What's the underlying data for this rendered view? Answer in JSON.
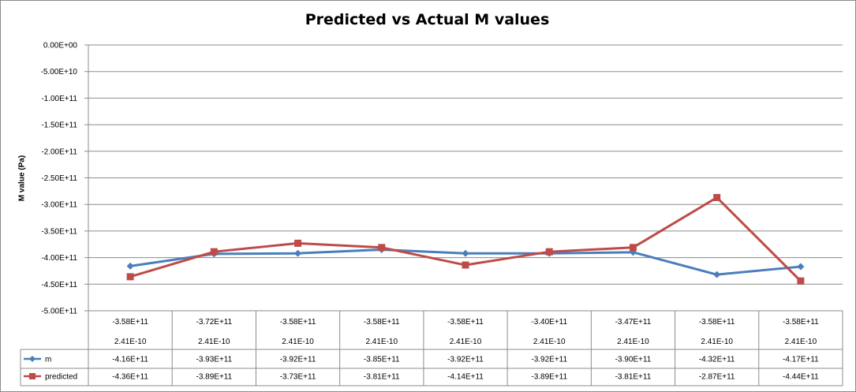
{
  "chart_data": {
    "type": "line",
    "title": "Predicted vs Actual M values",
    "ylabel": "M value  (Pa)",
    "ylim": [
      -500000000000,
      0
    ],
    "yticks": [
      0,
      -50000000000,
      -100000000000,
      -150000000000,
      -200000000000,
      -250000000000,
      -300000000000,
      -350000000000,
      -400000000000,
      -450000000000,
      -500000000000
    ],
    "ytick_labels": [
      "0.00E+00",
      "-5.00E+10",
      "-1.00E+11",
      "-1.50E+11",
      "-2.00E+11",
      "-2.50E+11",
      "-3.00E+11",
      "-3.50E+11",
      "-4.00E+11",
      "-4.50E+11",
      "-5.00E+11"
    ],
    "category_rows": [
      [
        "-3.58E+11",
        "-3.72E+11",
        "-3.58E+11",
        "-3.58E+11",
        "-3.58E+11",
        "-3.40E+11",
        "-3.47E+11",
        "-3.58E+11",
        "-3.58E+11"
      ],
      [
        "2.41E-10",
        "2.41E-10",
        "2.41E-10",
        "2.41E-10",
        "2.41E-10",
        "2.41E-10",
        "2.41E-10",
        "2.41E-10",
        "2.41E-10"
      ]
    ],
    "series": [
      {
        "name": "m",
        "color": "#4a7ebb",
        "marker": "diamond",
        "values": [
          -416000000000,
          -393000000000,
          -392000000000,
          -385000000000,
          -392000000000,
          -392000000000,
          -390000000000,
          -432000000000,
          -417000000000
        ],
        "labels": [
          "-4.16E+11",
          "-3.93E+11",
          "-3.92E+11",
          "-3.85E+11",
          "-3.92E+11",
          "-3.92E+11",
          "-3.90E+11",
          "-4.32E+11",
          "-4.17E+11"
        ]
      },
      {
        "name": "predicted",
        "color": "#be4b48",
        "marker": "square",
        "values": [
          -436000000000,
          -389000000000,
          -373000000000,
          -381000000000,
          -414000000000,
          -389000000000,
          -381000000000,
          -287000000000,
          -444000000000
        ],
        "labels": [
          "-4.36E+11",
          "-3.89E+11",
          "-3.73E+11",
          "-3.81E+11",
          "-4.14E+11",
          "-3.89E+11",
          "-3.81E+11",
          "-2.87E+11",
          "-4.44E+11"
        ]
      }
    ],
    "grid": true,
    "legend": "data-table-keys"
  }
}
